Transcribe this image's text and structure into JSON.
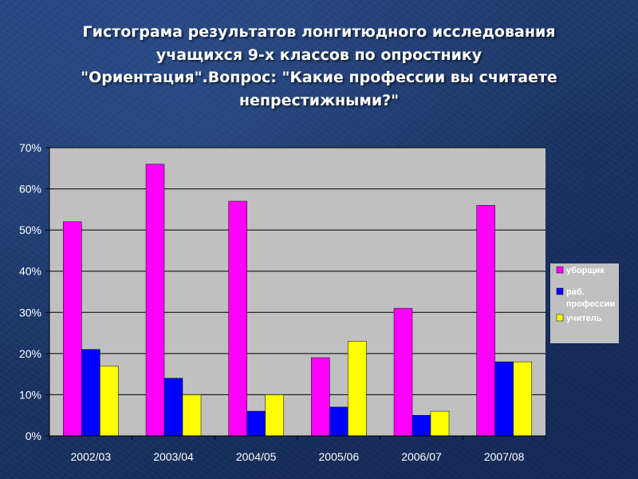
{
  "slide": {
    "title_lines": [
      "Гистограма результатов лонгитюдного исследования",
      "учащихся 9-х классов по опростнику",
      "\"Ориентация\".Вопрос: \"Какие профессии вы считаете",
      "непрестижными?\""
    ]
  },
  "chart_data": {
    "type": "bar",
    "title": "Гистограма результатов лонгитюдного исследования учащихся 9-х классов по опростнику \"Ориентация\".Вопрос: \"Какие профессии вы считаете непрестижными?\"",
    "xlabel": "",
    "ylabel": "",
    "categories": [
      "2002/03",
      "2003/04",
      "2004/05",
      "2005/06",
      "2006/07",
      "2007/08"
    ],
    "series": [
      {
        "name": "уборщик",
        "color": "#ff00ff",
        "values": [
          52,
          66,
          57,
          19,
          31,
          56
        ]
      },
      {
        "name": "раб. профессии",
        "color": "#0000ff",
        "values": [
          21,
          14,
          6,
          7,
          5,
          18
        ]
      },
      {
        "name": "учитель",
        "color": "#ffff00",
        "values": [
          17,
          10,
          10,
          23,
          6,
          18
        ]
      }
    ],
    "ylim": [
      0,
      70
    ],
    "yticks": [
      0,
      10,
      20,
      30,
      40,
      50,
      60,
      70
    ],
    "ytick_labels": [
      "0%",
      "10%",
      "20%",
      "30%",
      "40%",
      "50%",
      "60%",
      "70%"
    ],
    "grid": true,
    "legend_position": "right",
    "plot_background": "#c0c0c0"
  }
}
